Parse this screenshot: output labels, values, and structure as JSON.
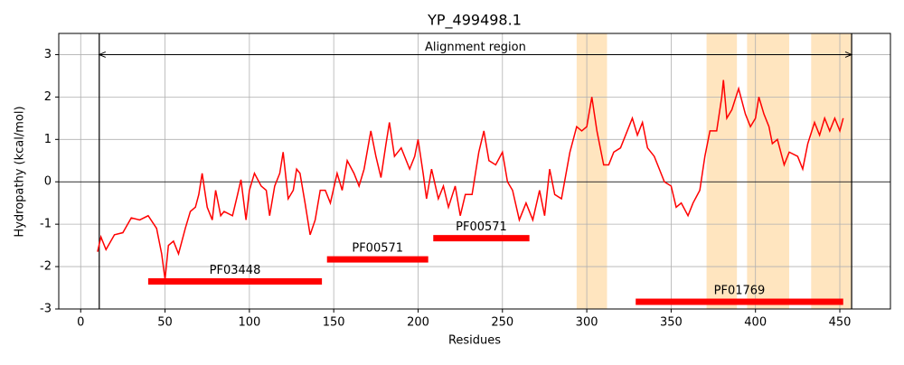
{
  "chart_data": {
    "type": "line",
    "title": "YP_499498.1",
    "xlabel": "Residues",
    "ylabel": "Hydropathy (kcal/mol)",
    "xlim": [
      -13,
      480
    ],
    "ylim": [
      -3,
      3.5
    ],
    "xticks": [
      0,
      50,
      100,
      150,
      200,
      250,
      300,
      350,
      400,
      450
    ],
    "yticks": [
      -3,
      -2,
      -1,
      0,
      1,
      2,
      3
    ],
    "grid": true,
    "hline": 0,
    "series": [
      {
        "name": "Hydropathy",
        "color": "#ff0000",
        "x": [
          10,
          12,
          15,
          20,
          25,
          30,
          35,
          40,
          45,
          48,
          50,
          52,
          55,
          58,
          62,
          65,
          68,
          70,
          72,
          75,
          78,
          80,
          83,
          85,
          90,
          93,
          95,
          98,
          100,
          103,
          107,
          110,
          112,
          115,
          118,
          120,
          123,
          126,
          128,
          130,
          133,
          136,
          139,
          142,
          145,
          148,
          152,
          155,
          158,
          162,
          165,
          168,
          172,
          175,
          178,
          181,
          183,
          186,
          190,
          195,
          198,
          200,
          203,
          205,
          208,
          212,
          215,
          218,
          222,
          225,
          228,
          232,
          236,
          239,
          242,
          246,
          250,
          253,
          256,
          260,
          264,
          268,
          272,
          275,
          278,
          281,
          285,
          290,
          294,
          297,
          300,
          303,
          306,
          310,
          313,
          316,
          320,
          323,
          327,
          330,
          333,
          336,
          340,
          343,
          346,
          350,
          353,
          356,
          360,
          363,
          367,
          370,
          373,
          377,
          380,
          381,
          383,
          386,
          390,
          394,
          397,
          400,
          402,
          405,
          408,
          410,
          413,
          417,
          420,
          425,
          428,
          431,
          435,
          438,
          441,
          444,
          447,
          450,
          452
        ],
        "values": [
          -1.65,
          -1.3,
          -1.6,
          -1.25,
          -1.2,
          -0.85,
          -0.9,
          -0.8,
          -1.1,
          -1.7,
          -2.3,
          -1.5,
          -1.4,
          -1.7,
          -1.1,
          -0.7,
          -0.6,
          -0.3,
          0.2,
          -0.6,
          -0.9,
          -0.2,
          -0.8,
          -0.7,
          -0.8,
          -0.3,
          0.05,
          -0.9,
          -0.2,
          0.2,
          -0.1,
          -0.2,
          -0.8,
          -0.1,
          0.2,
          0.7,
          -0.4,
          -0.2,
          0.3,
          0.2,
          -0.5,
          -1.25,
          -0.9,
          -0.2,
          -0.2,
          -0.5,
          0.2,
          -0.2,
          0.5,
          0.2,
          -0.1,
          0.3,
          1.2,
          0.6,
          0.1,
          0.9,
          1.4,
          0.6,
          0.8,
          0.3,
          0.6,
          1.0,
          0.2,
          -0.4,
          0.3,
          -0.4,
          -0.1,
          -0.6,
          -0.1,
          -0.8,
          -0.3,
          -0.3,
          0.7,
          1.2,
          0.5,
          0.4,
          0.7,
          0.0,
          -0.2,
          -0.9,
          -0.5,
          -0.9,
          -0.2,
          -0.8,
          0.3,
          -0.3,
          -0.4,
          0.7,
          1.3,
          1.2,
          1.3,
          2.0,
          1.2,
          0.4,
          0.4,
          0.7,
          0.8,
          1.1,
          1.5,
          1.1,
          1.4,
          0.8,
          0.6,
          0.3,
          0.0,
          -0.1,
          -0.6,
          -0.5,
          -0.8,
          -0.5,
          -0.2,
          0.6,
          1.2,
          1.2,
          2.0,
          2.4,
          1.5,
          1.7,
          2.2,
          1.6,
          1.3,
          1.5,
          2.0,
          1.6,
          1.3,
          0.9,
          1.0,
          0.4,
          0.7,
          0.6,
          0.3,
          0.9,
          1.4,
          1.1,
          1.5,
          1.2,
          1.5,
          1.2,
          1.5
        ]
      }
    ],
    "spans": [
      {
        "start": 294,
        "end": 312,
        "color": "#ffe5bf"
      },
      {
        "start": 371,
        "end": 389,
        "color": "#ffe5bf"
      },
      {
        "start": 395,
        "end": 420,
        "color": "#ffe5bf"
      },
      {
        "start": 433,
        "end": 457,
        "color": "#ffe5bf"
      }
    ],
    "alignment": {
      "label": "Alignment region",
      "start": 11,
      "end": 457,
      "y": 3
    },
    "domains": [
      {
        "name": "PF03448",
        "start": 40,
        "end": 143,
        "y": -2.35
      },
      {
        "name": "PF00571",
        "start": 146,
        "end": 206,
        "y": -1.83
      },
      {
        "name": "PF00571",
        "start": 209,
        "end": 266,
        "y": -1.33
      },
      {
        "name": "PF01769",
        "start": 329,
        "end": 452,
        "y": -2.83
      }
    ],
    "domain_color": "#ff0000"
  }
}
